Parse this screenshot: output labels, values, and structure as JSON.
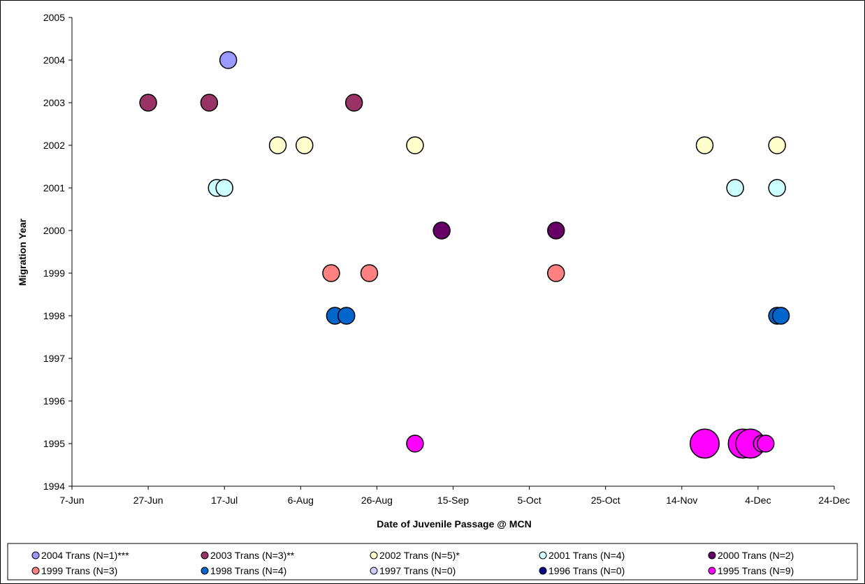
{
  "chart_data": {
    "type": "scatter",
    "title": "",
    "xlabel": "Date of Juvenile Passage @ MCN",
    "ylabel": "Migration Year",
    "x_tick_labels": [
      "7-Jun",
      "27-Jun",
      "17-Jul",
      "6-Aug",
      "26-Aug",
      "15-Sep",
      "5-Oct",
      "25-Oct",
      "14-Nov",
      "4-Dec",
      "24-Dec"
    ],
    "x_tick_dates": [
      "06-07",
      "06-27",
      "07-17",
      "08-06",
      "08-26",
      "09-15",
      "10-05",
      "10-25",
      "11-14",
      "12-04",
      "12-24"
    ],
    "xlim": [
      "06-07",
      "12-24"
    ],
    "ylim": [
      1994,
      2005
    ],
    "y_ticks": [
      1994,
      1995,
      1996,
      1997,
      1998,
      1999,
      2000,
      2001,
      2002,
      2003,
      2004,
      2005
    ],
    "grid": false,
    "legend_position": "bottom",
    "series": [
      {
        "name": "2004 Trans (N=1)***",
        "color": "#9999FF",
        "points": [
          {
            "x": "07-18",
            "y": 2004
          }
        ]
      },
      {
        "name": "2003 Trans (N=3)**",
        "color": "#993366",
        "points": [
          {
            "x": "06-27",
            "y": 2003
          },
          {
            "x": "07-13",
            "y": 2003
          },
          {
            "x": "08-20",
            "y": 2003
          }
        ]
      },
      {
        "name": "2002 Trans (N=5)*",
        "color": "#FFFFCC",
        "points": [
          {
            "x": "07-31",
            "y": 2002
          },
          {
            "x": "08-07",
            "y": 2002
          },
          {
            "x": "09-05",
            "y": 2002
          },
          {
            "x": "11-20",
            "y": 2002
          },
          {
            "x": "12-09",
            "y": 2002
          }
        ]
      },
      {
        "name": "2001 Trans (N=4)",
        "color": "#CCFFFF",
        "points": [
          {
            "x": "07-15",
            "y": 2001
          },
          {
            "x": "07-17",
            "y": 2001
          },
          {
            "x": "11-28",
            "y": 2001
          },
          {
            "x": "12-09",
            "y": 2001
          }
        ]
      },
      {
        "name": "2000 Trans (N=2)",
        "color": "#660066",
        "points": [
          {
            "x": "09-12",
            "y": 2000
          },
          {
            "x": "10-12",
            "y": 2000
          }
        ]
      },
      {
        "name": "1999 Trans (N=3)",
        "color": "#FF8080",
        "points": [
          {
            "x": "08-14",
            "y": 1999
          },
          {
            "x": "08-24",
            "y": 1999
          },
          {
            "x": "10-12",
            "y": 1999
          }
        ]
      },
      {
        "name": "1998 Trans (N=4)",
        "color": "#0066CC",
        "points": [
          {
            "x": "08-15",
            "y": 1998
          },
          {
            "x": "08-18",
            "y": 1998
          },
          {
            "x": "12-09",
            "y": 1998
          },
          {
            "x": "12-10",
            "y": 1998
          }
        ]
      },
      {
        "name": "1997 Trans (N=0)",
        "color": "#CCCCFF",
        "points": []
      },
      {
        "name": "1996 Trans (N=0)",
        "color": "#000080",
        "points": []
      },
      {
        "name": "1995 Trans (N=9)",
        "color": "#FF00FF",
        "points": [
          {
            "x": "09-05",
            "y": 1995,
            "size": 1
          },
          {
            "x": "11-20",
            "y": 1995,
            "size": 3
          },
          {
            "x": "11-30",
            "y": 1995,
            "size": 3
          },
          {
            "x": "12-02",
            "y": 1995,
            "size": 3
          },
          {
            "x": "12-05",
            "y": 1995,
            "size": 1
          },
          {
            "x": "12-06",
            "y": 1995,
            "size": 1
          }
        ]
      }
    ]
  }
}
